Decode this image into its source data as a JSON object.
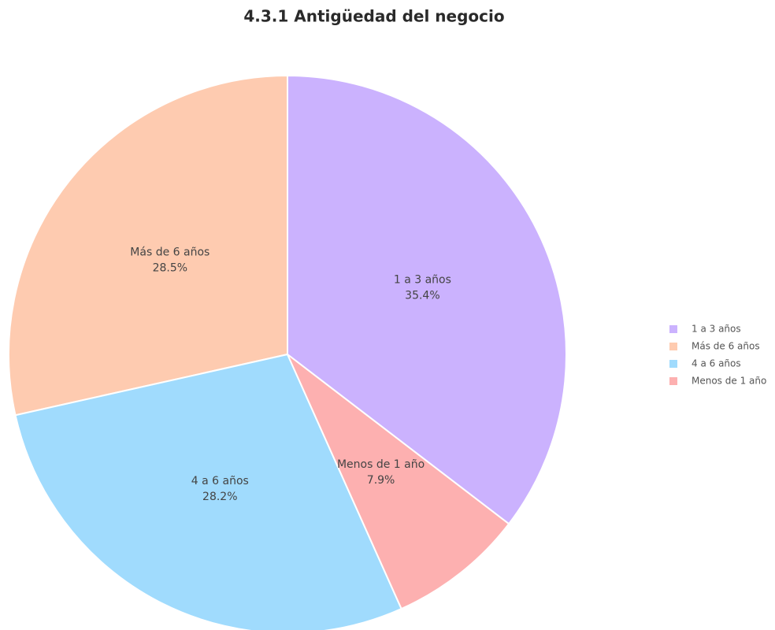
{
  "chart_data": {
    "type": "pie",
    "title": "4.3.1 Antigüedad del negocio",
    "categories": [
      "1 a 3 años",
      "Más de 6 años",
      "4 a 6 años",
      "Menos de 1 año"
    ],
    "values": [
      35.4,
      28.5,
      28.2,
      7.9
    ],
    "value_labels": [
      "35.4%",
      "28.5%",
      "28.2%",
      "7.9%"
    ],
    "colors": [
      "#cbb2fe",
      "#fecbb0",
      "#a0dbfd",
      "#fdb0b0"
    ],
    "direction": "counterclockwise",
    "legend": "right"
  }
}
